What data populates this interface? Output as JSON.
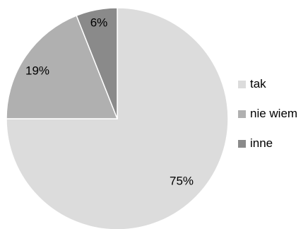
{
  "chart_data": {
    "type": "pie",
    "categories": [
      "tak",
      "nie wiem",
      "inne"
    ],
    "values": [
      75,
      19,
      6
    ],
    "data_labels": [
      "75%",
      "19%",
      "6%"
    ],
    "colors": [
      "#dcdcdc",
      "#b0b0b0",
      "#8a8a8a"
    ],
    "edge_color": "#ffffff",
    "start_angle": "12 o'clock",
    "direction": "clockwise",
    "legend": {
      "placement": "right",
      "items": [
        {
          "label": "tak",
          "color": "#dcdcdc"
        },
        {
          "label": "nie wiem",
          "color": "#b0b0b0"
        },
        {
          "label": "inne",
          "color": "#8a8a8a"
        }
      ]
    }
  }
}
